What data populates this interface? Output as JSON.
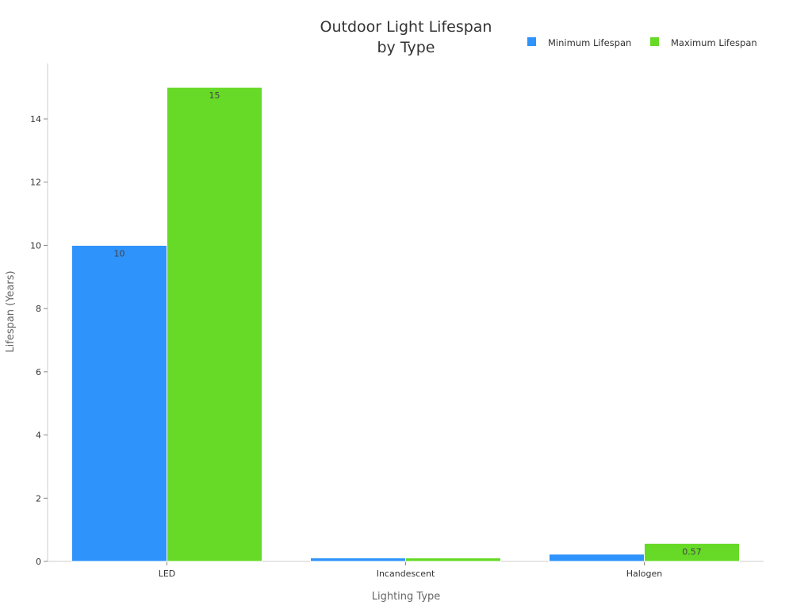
{
  "chart_data": {
    "type": "bar",
    "title": [
      "Outdoor Light Lifespan",
      "by Type"
    ],
    "xlabel": "Lighting Type",
    "ylabel": "Lifespan (Years)",
    "categories": [
      "LED",
      "Incandescent",
      "Halogen"
    ],
    "series": [
      {
        "name": "Minimum Lifespan",
        "color": "#2e93fa",
        "values": [
          10,
          0.11,
          0.23
        ],
        "labels": [
          "10",
          "",
          ""
        ]
      },
      {
        "name": "Maximum Lifespan",
        "color": "#66da26",
        "values": [
          15,
          0.11,
          0.57
        ],
        "labels": [
          "15",
          "",
          "0.57"
        ]
      }
    ],
    "ylim": [
      0,
      15.7
    ],
    "yticks": [
      0,
      2,
      4,
      6,
      8,
      10,
      12,
      14
    ],
    "grid": false,
    "legend": "top-right"
  }
}
